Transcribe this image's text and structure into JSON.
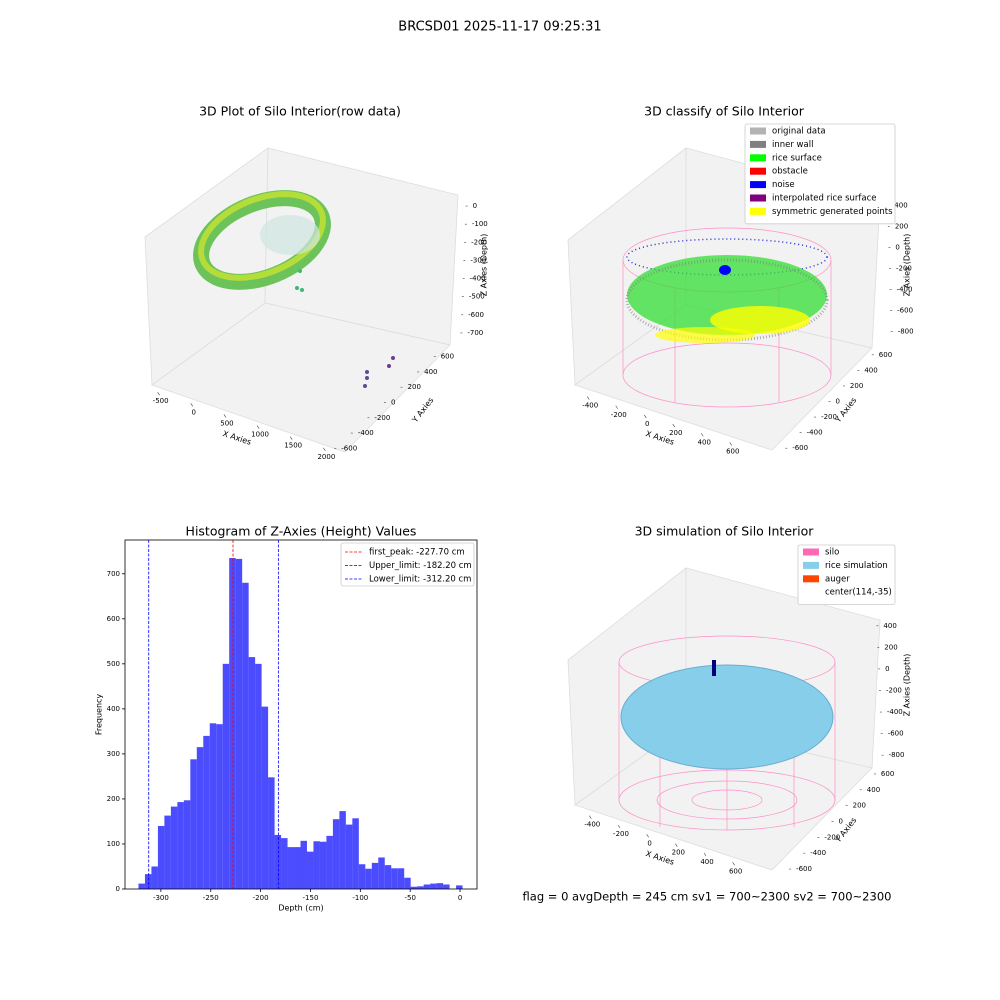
{
  "title": "BRCSD01 2025-11-17 09:25:31",
  "footer": "flag = 0     avgDepth = 245 cm  sv1 = 700~2300  sv2 = 700~2300",
  "chart_data": [
    {
      "type": "scatter3d",
      "title": "3D Plot of Silo Interior(row data)",
      "xlabel": "X Axies",
      "ylabel": "Y Axies",
      "zlabel": "Z Axies (Depth)",
      "xlim": [
        -600,
        2100
      ],
      "ylim": [
        -700,
        700
      ],
      "zlim": [
        -750,
        50
      ],
      "xticks": [
        -500,
        0,
        500,
        1000,
        1500,
        2000
      ],
      "yticks": [
        -600,
        -400,
        -200,
        0,
        200,
        400,
        600
      ],
      "zticks": [
        0,
        -100,
        -200,
        -300,
        -400,
        -500,
        -600,
        -700
      ]
    },
    {
      "type": "scatter3d",
      "title": "3D classify of Silo Interior",
      "xlabel": "X Axies",
      "ylabel": "Y Axies",
      "zlabel": "Z Axies (Depth)",
      "xlim": [
        -500,
        700
      ],
      "ylim": [
        -700,
        700
      ],
      "zlim": [
        -900,
        500
      ],
      "xticks": [
        -400,
        -200,
        0,
        200,
        400,
        600
      ],
      "yticks": [
        -600,
        -400,
        -200,
        0,
        200,
        400,
        600
      ],
      "zticks": [
        400,
        200,
        0,
        -200,
        -400,
        -600,
        -800
      ],
      "legend": [
        {
          "name": "original data",
          "color": "#b3b3b3"
        },
        {
          "name": "inner wall",
          "color": "#808080"
        },
        {
          "name": "rice surface",
          "color": "#00ff00"
        },
        {
          "name": "obstacle",
          "color": "#ff0000"
        },
        {
          "name": "noise",
          "color": "#0000ff"
        },
        {
          "name": "interpolated rice surface",
          "color": "#800080"
        },
        {
          "name": "symmetric generated points",
          "color": "#ffff00"
        }
      ],
      "legend_position": "upper right"
    },
    {
      "type": "histogram",
      "title": "Histogram of Z-Axies (Height) Values",
      "xlabel": "Depth (cm)",
      "ylabel": "Frequency",
      "bins": [
        -322.5,
        -316,
        -309.5,
        -303,
        -296.5,
        -290,
        -283.5,
        -277,
        -270.5,
        -264,
        -257.5,
        -251,
        -244.5,
        -238,
        -231.5,
        -225,
        -218.5,
        -212,
        -205.5,
        -199,
        -192.5,
        -186,
        -179.5,
        -173,
        -166.5,
        -160,
        -153.5,
        -147,
        -140.5,
        -134,
        -127.5,
        -121,
        -114.5,
        -108,
        -101.5,
        -95,
        -88.5,
        -82,
        -75.5,
        -69,
        -62.5,
        -56,
        -49.5,
        -43,
        -36.5,
        -30,
        -23.5,
        -17,
        -10.5,
        -4,
        2.5
      ],
      "counts": [
        12,
        33,
        50,
        140,
        163,
        183,
        193,
        197,
        288,
        315,
        340,
        368,
        366,
        500,
        735,
        733,
        680,
        515,
        500,
        405,
        248,
        120,
        113,
        93,
        93,
        107,
        83,
        106,
        105,
        118,
        155,
        173,
        143,
        157,
        55,
        45,
        58,
        70,
        53,
        46,
        46,
        25,
        5,
        6,
        10,
        12,
        13,
        10,
        0,
        8
      ],
      "color": "#0000ff",
      "alpha": 0.7,
      "xlim": [
        -336,
        17
      ],
      "ylim": [
        0,
        775
      ],
      "xticks": [
        -300,
        -250,
        -200,
        -150,
        -100,
        -50,
        0
      ],
      "yticks": [
        0,
        100,
        200,
        300,
        400,
        500,
        600,
        700
      ],
      "lines": [
        {
          "name": "first_peak: -227.70 cm",
          "value": -227.7,
          "color": "#ff0000"
        },
        {
          "name": "Upper_limit: -182.20 cm",
          "value": -182.2,
          "color": "#0000ff"
        },
        {
          "name": "Lower_limit: -312.20 cm",
          "value": -312.2,
          "color": "#0000ff"
        }
      ],
      "legend_position": "upper right"
    },
    {
      "type": "scatter3d",
      "title": "3D simulation of Silo Interior",
      "xlabel": "X Axies",
      "ylabel": "Y Axies",
      "zlabel": "Z Axies (Depth)",
      "xlim": [
        -500,
        700
      ],
      "ylim": [
        -700,
        700
      ],
      "zlim": [
        -900,
        500
      ],
      "xticks": [
        -400,
        -200,
        0,
        200,
        400,
        600
      ],
      "yticks": [
        -600,
        -400,
        -200,
        0,
        200,
        400,
        600
      ],
      "zticks": [
        400,
        200,
        0,
        -200,
        -400,
        -600,
        -800
      ],
      "legend": [
        {
          "name": "silo",
          "color": "#ff69b4"
        },
        {
          "name": "rice simulation",
          "color": "#87ceeb"
        },
        {
          "name": "auger",
          "color": "#ff4500"
        },
        {
          "name": "center(114,-35)",
          "color": "#ffffff"
        }
      ],
      "legend_position": "upper right"
    }
  ]
}
